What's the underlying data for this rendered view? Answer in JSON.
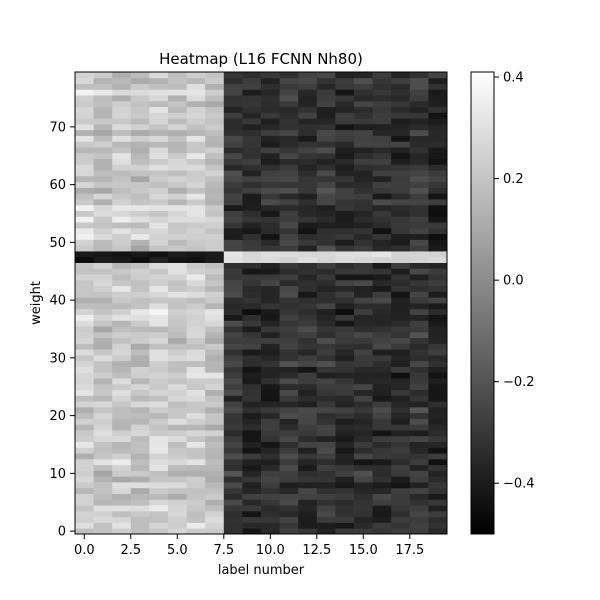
{
  "chart_data": {
    "type": "heatmap",
    "title": "Heatmap (L16 FCNN Nh80)",
    "xlabel": "label number",
    "ylabel": "weight",
    "colormap": "gray",
    "n_cols": 20,
    "n_rows": 80,
    "x_ticks": [
      0,
      2.5,
      5,
      7.5,
      10,
      12.5,
      15,
      17.5
    ],
    "x_tick_labels": [
      "0.0",
      "2.5",
      "5.0",
      "7.5",
      "10.0",
      "12.5",
      "15.0",
      "17.5"
    ],
    "y_ticks": [
      0,
      10,
      20,
      30,
      40,
      50,
      60,
      70
    ],
    "y_tick_labels": [
      "0",
      "10",
      "20",
      "30",
      "40",
      "50",
      "60",
      "70"
    ],
    "colorbar": {
      "vmin": -0.5,
      "vmax": 0.41,
      "ticks": [
        0.4,
        0.2,
        0.0,
        -0.2,
        -0.4
      ],
      "tick_labels": [
        "0.4",
        "0.2",
        "0.0",
        "−0.2",
        "−0.4"
      ]
    },
    "value_pattern": {
      "bright_columns": [
        0,
        7
      ],
      "dark_columns": [
        8,
        19
      ],
      "bright_column_mean": 0.22,
      "dark_column_mean": -0.33,
      "inverted_rows": [
        47,
        48
      ],
      "inverted_row_values": {
        "bright_columns": -0.42,
        "dark_columns": 0.28
      }
    }
  }
}
